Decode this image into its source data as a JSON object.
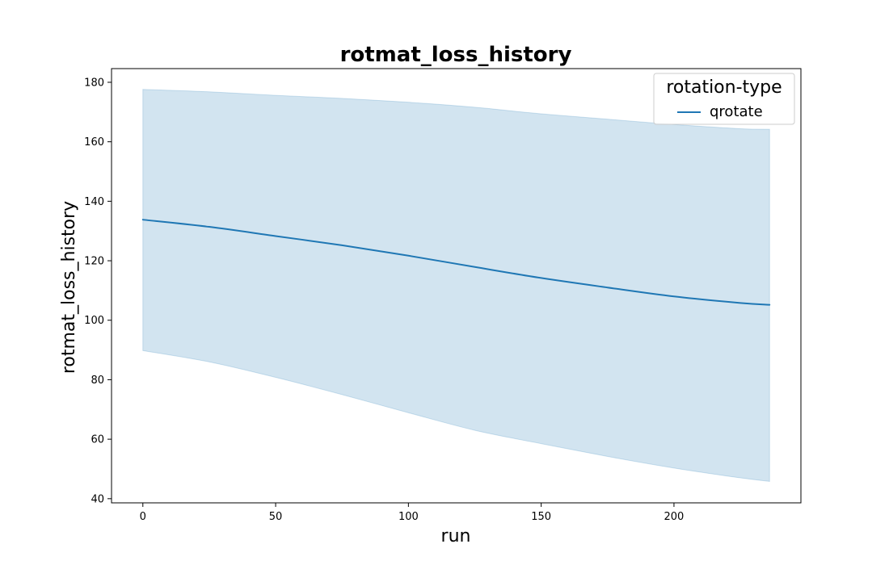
{
  "chart_data": {
    "type": "line",
    "title": "rotmat_loss_history",
    "xlabel": "run",
    "ylabel": "rotmat_loss_history",
    "xlim": [
      -11.8,
      247.8
    ],
    "ylim": [
      38.6,
      184.6
    ],
    "xticks": [
      0,
      50,
      100,
      150,
      200
    ],
    "yticks": [
      40,
      60,
      80,
      100,
      120,
      140,
      160,
      180
    ],
    "grid": false,
    "legend": {
      "title": "rotation-type",
      "placement": "top-right"
    },
    "colors": {
      "line": "#1f77b4",
      "band": "#1f77b4"
    },
    "series": [
      {
        "name": "qrotate",
        "x": [
          0,
          25,
          50,
          75,
          100,
          125,
          150,
          175,
          200,
          225,
          236
        ],
        "y": [
          133.8,
          131.4,
          128.3,
          125.2,
          121.7,
          117.9,
          114.2,
          111.0,
          108.0,
          105.8,
          105.2
        ],
        "lower": [
          89.8,
          86.0,
          80.8,
          75.0,
          68.9,
          63.0,
          58.5,
          54.2,
          50.3,
          47.0,
          45.8
        ],
        "upper": [
          177.6,
          176.8,
          175.6,
          174.6,
          173.3,
          171.6,
          169.4,
          167.6,
          165.8,
          164.4,
          164.2
        ]
      }
    ]
  }
}
